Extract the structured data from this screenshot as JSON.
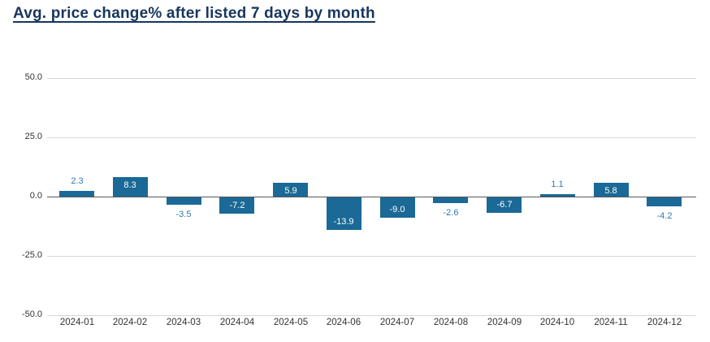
{
  "chart_data": {
    "type": "bar",
    "title": "Avg. price change% after listed 7 days by month",
    "categories": [
      "2024-01",
      "2024-02",
      "2024-03",
      "2024-04",
      "2024-05",
      "2024-06",
      "2024-07",
      "2024-08",
      "2024-09",
      "2024-10",
      "2024-11",
      "2024-12"
    ],
    "values": [
      2.3,
      8.3,
      -3.5,
      -7.2,
      5.9,
      -13.9,
      -9.0,
      -2.6,
      -6.7,
      1.1,
      5.8,
      -4.2
    ],
    "value_labels": [
      "2.3",
      "8.3",
      "-3.5",
      "-7.2",
      "5.9",
      "-13.9",
      "-9.0",
      "-2.6",
      "-6.7",
      "1.1",
      "5.8",
      "-4.2"
    ],
    "xlabel": "",
    "ylabel": "",
    "ylim": [
      -50,
      50
    ],
    "yticks": [
      50,
      25,
      0,
      -25,
      -50
    ],
    "ytick_labels": [
      "50.0",
      "25.0",
      "0.0",
      "-25.0",
      "-50.0"
    ],
    "grid": true,
    "legend_position": "none",
    "colors": {
      "bar": "#1a6996",
      "value_label_inside": "#ffffff",
      "value_label_outside": "#2e79ad",
      "title": "#17365d",
      "axis_text": "#333333",
      "gridline": "#d8d8d8",
      "zero_line": "#575757",
      "background": "#ffffff"
    }
  }
}
